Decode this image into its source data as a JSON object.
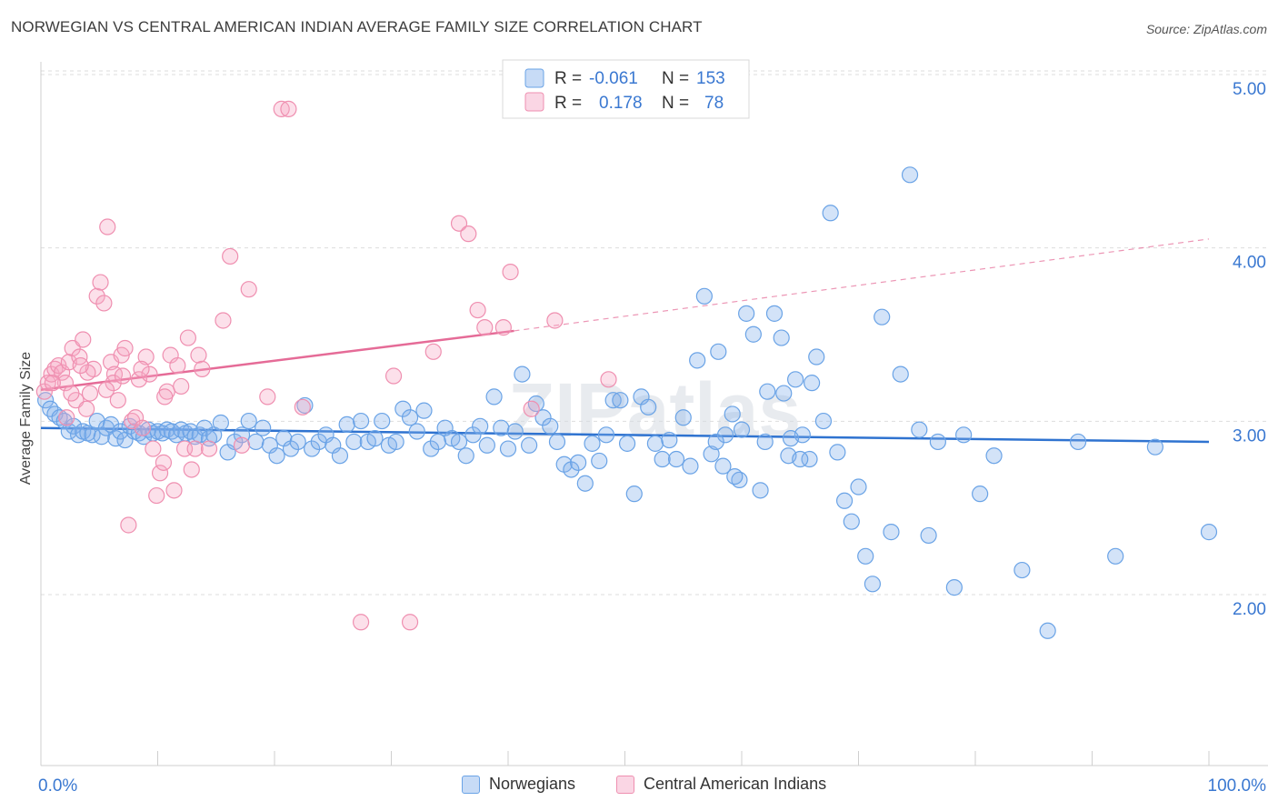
{
  "title": "NORWEGIAN VS CENTRAL AMERICAN INDIAN AVERAGE FAMILY SIZE CORRELATION CHART",
  "source": "Source: ZipAtlas.com",
  "watermark": "ZIPatlas",
  "colors": {
    "blue": "#6aa3e6",
    "blue_fill": "rgba(130,175,235,0.35)",
    "blue_line": "#2f73d0",
    "pink": "#ef8fb0",
    "pink_fill": "rgba(245,165,195,0.35)",
    "pink_line": "#e56b97",
    "axis_value": "#3a78d1",
    "grid": "#dddddd"
  },
  "legend_top": {
    "rows": [
      {
        "r_label": "R =",
        "r_value": "-0.061",
        "n_label": "N =",
        "n_value": "153"
      },
      {
        "r_label": "R =",
        "r_value": "0.178",
        "n_label": "N =",
        "n_value": "78"
      }
    ]
  },
  "legend_bottom": {
    "items": [
      "Norwegians",
      "Central American Indians"
    ]
  },
  "chart_data": {
    "type": "scatter",
    "title": "NORWEGIAN VS CENTRAL AMERICAN INDIAN AVERAGE FAMILY SIZE CORRELATION CHART",
    "xlabel": "",
    "ylabel": "Average Family Size",
    "xlim": [
      0,
      100
    ],
    "ylim": [
      1.0,
      5.1
    ],
    "x_tick_labels": [
      "0.0%",
      "100.0%"
    ],
    "y_ticks": [
      2.0,
      3.0,
      4.0,
      5.0
    ],
    "y_tick_labels": [
      "2.00",
      "3.00",
      "4.00",
      "5.00"
    ],
    "grid": "horizontal dashed",
    "legend_position": "top-center",
    "series": [
      {
        "name": "Norwegians",
        "R": -0.061,
        "N": 153,
        "trend": {
          "x": [
            0,
            100
          ],
          "y": [
            3.04,
            2.96
          ]
        },
        "points": [
          [
            0.4,
            3.2
          ],
          [
            0.8,
            3.15
          ],
          [
            1.2,
            3.12
          ],
          [
            1.6,
            3.1
          ],
          [
            2.0,
            3.08
          ],
          [
            2.4,
            3.02
          ],
          [
            2.8,
            3.05
          ],
          [
            3.2,
            3.0
          ],
          [
            3.6,
            3.02
          ],
          [
            4.0,
            3.01
          ],
          [
            4.4,
            3.0
          ],
          [
            4.8,
            3.08
          ],
          [
            5.2,
            2.99
          ],
          [
            5.6,
            3.04
          ],
          [
            6.0,
            3.06
          ],
          [
            6.4,
            2.98
          ],
          [
            6.8,
            3.02
          ],
          [
            7.2,
            2.97
          ],
          [
            7.6,
            3.05
          ],
          [
            8.0,
            3.02
          ],
          [
            8.4,
            3.01
          ],
          [
            8.8,
            2.99
          ],
          [
            9.2,
            3.03
          ],
          [
            9.6,
            3.01
          ],
          [
            10.0,
            3.02
          ],
          [
            10.4,
            3.01
          ],
          [
            10.8,
            3.03
          ],
          [
            11.2,
            3.02
          ],
          [
            11.6,
            3.0
          ],
          [
            12.0,
            3.03
          ],
          [
            12.4,
            3.01
          ],
          [
            12.8,
            3.02
          ],
          [
            13.2,
            2.99
          ],
          [
            13.6,
            3.0
          ],
          [
            14.0,
            3.04
          ],
          [
            14.4,
            2.98
          ],
          [
            14.8,
            3.0
          ],
          [
            15.4,
            3.07
          ],
          [
            16.0,
            2.9
          ],
          [
            16.6,
            2.96
          ],
          [
            17.2,
            3.0
          ],
          [
            17.8,
            3.08
          ],
          [
            18.4,
            2.96
          ],
          [
            19.0,
            3.04
          ],
          [
            19.6,
            2.94
          ],
          [
            20.2,
            2.88
          ],
          [
            20.8,
            2.98
          ],
          [
            21.4,
            2.92
          ],
          [
            22.0,
            2.96
          ],
          [
            22.6,
            3.17
          ],
          [
            23.2,
            2.92
          ],
          [
            23.8,
            2.96
          ],
          [
            24.4,
            3.0
          ],
          [
            25.0,
            2.94
          ],
          [
            25.6,
            2.88
          ],
          [
            26.2,
            3.06
          ],
          [
            26.8,
            2.96
          ],
          [
            27.4,
            3.08
          ],
          [
            28.0,
            2.96
          ],
          [
            28.6,
            2.98
          ],
          [
            29.2,
            3.08
          ],
          [
            29.8,
            2.94
          ],
          [
            30.4,
            2.96
          ],
          [
            31.0,
            3.15
          ],
          [
            31.6,
            3.1
          ],
          [
            32.2,
            3.02
          ],
          [
            32.8,
            3.14
          ],
          [
            33.4,
            2.92
          ],
          [
            34.0,
            2.96
          ],
          [
            34.6,
            3.04
          ],
          [
            35.2,
            2.98
          ],
          [
            35.8,
            2.96
          ],
          [
            36.4,
            2.88
          ],
          [
            37.0,
            3.0
          ],
          [
            37.6,
            3.05
          ],
          [
            38.2,
            2.94
          ],
          [
            38.8,
            3.22
          ],
          [
            39.4,
            3.04
          ],
          [
            40.0,
            2.92
          ],
          [
            40.6,
            3.02
          ],
          [
            41.2,
            3.35
          ],
          [
            41.8,
            2.94
          ],
          [
            42.4,
            3.18
          ],
          [
            43.0,
            3.1
          ],
          [
            43.6,
            3.05
          ],
          [
            44.2,
            2.96
          ],
          [
            44.8,
            2.83
          ],
          [
            45.4,
            2.8
          ],
          [
            46.0,
            2.84
          ],
          [
            46.6,
            2.72
          ],
          [
            47.2,
            2.95
          ],
          [
            47.8,
            2.85
          ],
          [
            48.4,
            3.0
          ],
          [
            49.0,
            3.2
          ],
          [
            49.6,
            3.2
          ],
          [
            50.2,
            2.95
          ],
          [
            50.8,
            2.66
          ],
          [
            51.4,
            3.22
          ],
          [
            52.0,
            3.16
          ],
          [
            52.6,
            2.95
          ],
          [
            53.2,
            2.86
          ],
          [
            53.8,
            2.97
          ],
          [
            54.4,
            2.86
          ],
          [
            55.0,
            3.1
          ],
          [
            55.6,
            2.82
          ],
          [
            56.2,
            3.43
          ],
          [
            56.8,
            3.8
          ],
          [
            57.4,
            2.89
          ],
          [
            58.0,
            3.48
          ],
          [
            58.6,
            3.0
          ],
          [
            59.2,
            3.12
          ],
          [
            59.8,
            2.74
          ],
          [
            60.4,
            3.7
          ],
          [
            61.0,
            3.58
          ],
          [
            61.6,
            2.68
          ],
          [
            62.2,
            3.25
          ],
          [
            62.8,
            3.7
          ],
          [
            63.4,
            3.56
          ],
          [
            64.0,
            2.88
          ],
          [
            64.6,
            3.32
          ],
          [
            65.2,
            3.0
          ],
          [
            65.8,
            2.86
          ],
          [
            66.4,
            3.45
          ],
          [
            67.0,
            3.08
          ],
          [
            67.6,
            4.28
          ],
          [
            68.2,
            2.9
          ],
          [
            68.8,
            2.62
          ],
          [
            69.4,
            2.5
          ],
          [
            70.0,
            2.7
          ],
          [
            70.6,
            2.3
          ],
          [
            71.2,
            2.14
          ],
          [
            72.0,
            3.68
          ],
          [
            72.8,
            2.44
          ],
          [
            73.6,
            3.35
          ],
          [
            74.4,
            4.5
          ],
          [
            75.2,
            3.03
          ],
          [
            76.0,
            2.42
          ],
          [
            76.8,
            2.96
          ],
          [
            78.2,
            2.12
          ],
          [
            79.0,
            3.0
          ],
          [
            80.4,
            2.66
          ],
          [
            81.6,
            2.88
          ],
          [
            84.0,
            2.22
          ],
          [
            86.2,
            1.87
          ],
          [
            88.8,
            2.96
          ],
          [
            92.0,
            2.3
          ],
          [
            95.4,
            2.93
          ],
          [
            100.0,
            2.44
          ],
          [
            57.8,
            2.96
          ],
          [
            60.0,
            3.03
          ],
          [
            62.0,
            2.96
          ],
          [
            63.6,
            3.24
          ],
          [
            64.2,
            2.98
          ],
          [
            65.0,
            2.86
          ],
          [
            66.0,
            3.3
          ],
          [
            58.4,
            2.82
          ],
          [
            59.4,
            2.76
          ]
        ]
      },
      {
        "name": "Central American Indians",
        "R": 0.178,
        "N": 78,
        "trend": {
          "x": [
            0,
            40.5
          ],
          "y": [
            3.26,
            3.6
          ],
          "dashed_to": {
            "x": 100,
            "y": 4.13
          }
        },
        "points": [
          [
            0.3,
            3.25
          ],
          [
            0.6,
            3.3
          ],
          [
            0.9,
            3.35
          ],
          [
            1.2,
            3.38
          ],
          [
            1.5,
            3.4
          ],
          [
            1.8,
            3.36
          ],
          [
            2.1,
            3.3
          ],
          [
            2.4,
            3.42
          ],
          [
            2.7,
            3.5
          ],
          [
            3.0,
            3.2
          ],
          [
            3.3,
            3.45
          ],
          [
            3.6,
            3.55
          ],
          [
            3.9,
            3.15
          ],
          [
            4.2,
            3.24
          ],
          [
            4.5,
            3.38
          ],
          [
            4.8,
            3.8
          ],
          [
            5.1,
            3.88
          ],
          [
            5.4,
            3.76
          ],
          [
            5.7,
            4.2
          ],
          [
            6.0,
            3.42
          ],
          [
            6.3,
            3.35
          ],
          [
            6.6,
            3.2
          ],
          [
            6.9,
            3.46
          ],
          [
            7.2,
            3.5
          ],
          [
            7.5,
            2.48
          ],
          [
            7.8,
            3.08
          ],
          [
            8.1,
            3.1
          ],
          [
            8.4,
            3.32
          ],
          [
            8.7,
            3.04
          ],
          [
            9.0,
            3.45
          ],
          [
            9.3,
            3.35
          ],
          [
            9.6,
            2.92
          ],
          [
            9.9,
            2.65
          ],
          [
            10.2,
            2.78
          ],
          [
            10.5,
            2.84
          ],
          [
            10.8,
            3.25
          ],
          [
            11.1,
            3.46
          ],
          [
            11.4,
            2.68
          ],
          [
            11.7,
            3.4
          ],
          [
            12.0,
            3.28
          ],
          [
            12.3,
            2.92
          ],
          [
            12.6,
            3.56
          ],
          [
            12.9,
            2.8
          ],
          [
            13.2,
            2.92
          ],
          [
            13.5,
            3.46
          ],
          [
            13.8,
            3.38
          ],
          [
            14.4,
            2.92
          ],
          [
            15.6,
            3.66
          ],
          [
            16.2,
            4.03
          ],
          [
            17.2,
            2.94
          ],
          [
            17.8,
            3.84
          ],
          [
            19.4,
            3.22
          ],
          [
            20.6,
            4.88
          ],
          [
            21.2,
            4.88
          ],
          [
            22.4,
            3.16
          ],
          [
            27.4,
            1.92
          ],
          [
            30.2,
            3.34
          ],
          [
            31.6,
            1.92
          ],
          [
            33.6,
            3.48
          ],
          [
            35.8,
            4.22
          ],
          [
            36.6,
            4.16
          ],
          [
            37.4,
            3.72
          ],
          [
            38.0,
            3.62
          ],
          [
            39.6,
            3.62
          ],
          [
            40.2,
            3.94
          ],
          [
            42.0,
            3.15
          ],
          [
            44.0,
            3.66
          ],
          [
            48.6,
            3.32
          ],
          [
            4.0,
            3.36
          ],
          [
            6.2,
            3.3
          ],
          [
            8.6,
            3.38
          ],
          [
            10.6,
            3.22
          ],
          [
            3.4,
            3.4
          ],
          [
            2.2,
            3.1
          ],
          [
            1.0,
            3.3
          ],
          [
            2.6,
            3.24
          ],
          [
            5.6,
            3.26
          ],
          [
            7.0,
            3.34
          ]
        ]
      }
    ]
  }
}
